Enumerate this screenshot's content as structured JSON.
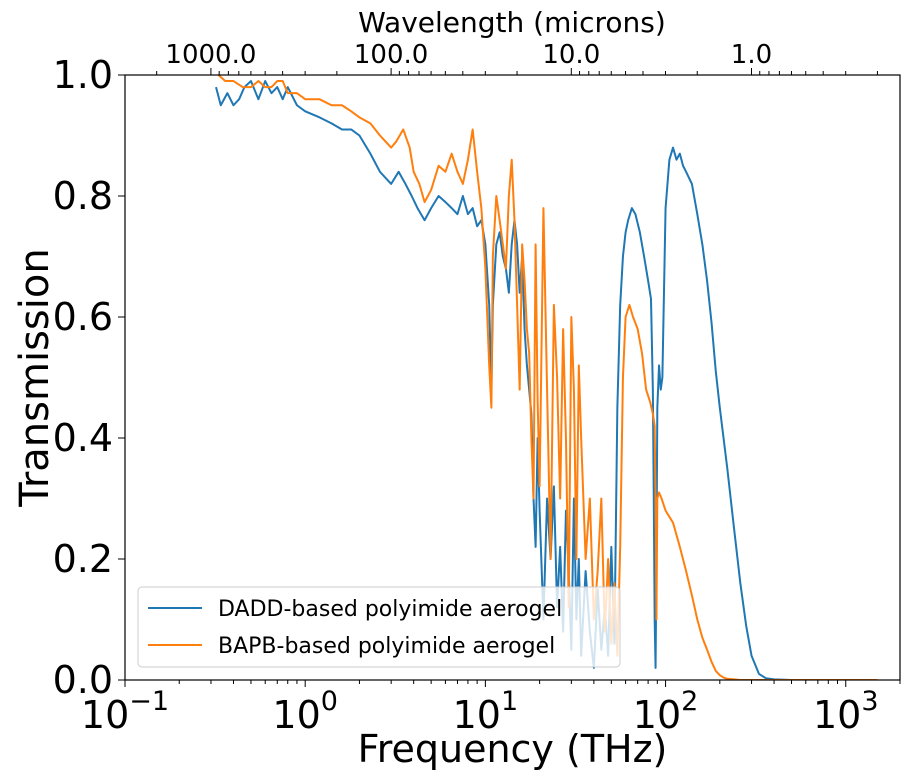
{
  "chart_data": {
    "type": "line",
    "xlabel": "Frequency (THz)",
    "ylabel": "Transmission",
    "top_xlabel": "Wavelength (microns)",
    "x_scale": "log",
    "xlim": [
      0.1,
      2000
    ],
    "ylim": [
      0,
      1.0
    ],
    "grid": false,
    "legend_position": "lower-left",
    "x_ticks": [
      {
        "value": 0.1,
        "base": "10",
        "exp": "−1"
      },
      {
        "value": 1,
        "base": "10",
        "exp": "0"
      },
      {
        "value": 10,
        "base": "10",
        "exp": "1"
      },
      {
        "value": 100,
        "base": "10",
        "exp": "2"
      },
      {
        "value": 1000,
        "base": "10",
        "exp": "3"
      }
    ],
    "y_ticks": [
      "0.0",
      "0.2",
      "0.4",
      "0.6",
      "0.8",
      "1.0"
    ],
    "top_ticks": [
      {
        "label": "1000.0",
        "wavelength_um": 1000
      },
      {
        "label": "100.0",
        "wavelength_um": 100
      },
      {
        "label": "10.0",
        "wavelength_um": 10
      },
      {
        "label": "1.0",
        "wavelength_um": 1
      }
    ],
    "series": [
      {
        "name": "DADD-based polyimide aerogel",
        "color": "#1f77b4",
        "x": [
          0.32,
          0.34,
          0.37,
          0.4,
          0.43,
          0.46,
          0.5,
          0.55,
          0.6,
          0.65,
          0.7,
          0.75,
          0.8,
          0.9,
          1.0,
          1.2,
          1.4,
          1.6,
          1.8,
          2.0,
          2.3,
          2.6,
          3.0,
          3.3,
          3.6,
          3.9,
          4.2,
          4.6,
          5.0,
          5.5,
          6.0,
          6.5,
          7.0,
          7.5,
          8.0,
          8.5,
          9.0,
          9.5,
          10.0,
          10.5,
          10.8,
          11.0,
          11.5,
          12.0,
          12.5,
          13.0,
          13.5,
          14.0,
          14.5,
          15.0,
          15.5,
          16.0,
          16.5,
          17.0,
          17.5,
          18.0,
          18.5,
          19.0,
          19.5,
          20.0,
          21.0,
          22.0,
          23.0,
          24.0,
          25.0,
          26.0,
          27.0,
          28.0,
          29.0,
          30.0,
          31.0,
          32.0,
          33.0,
          34.0,
          36.0,
          38.0,
          40.0,
          42.0,
          44.0,
          46.0,
          48.0,
          50.0,
          52.0,
          54.0,
          56.0,
          58.0,
          60.0,
          62.0,
          65.0,
          68.0,
          72.0,
          76.0,
          80.0,
          83.0,
          85.0,
          86.0,
          87.0,
          88.0,
          89.0,
          90.0,
          92.0,
          94.0,
          96.0,
          100.0,
          105.0,
          110.0,
          115.0,
          120.0,
          125.0,
          130.0,
          140.0,
          150.0,
          160.0,
          170.0,
          180.0,
          190.0,
          200.0,
          220.0,
          240.0,
          260.0,
          280.0,
          300.0,
          330.0,
          360.0,
          400.0,
          500.0,
          700.0,
          1000.0,
          1500.0
        ],
        "y": [
          0.98,
          0.95,
          0.97,
          0.95,
          0.96,
          0.98,
          0.99,
          0.96,
          0.99,
          0.97,
          0.98,
          0.96,
          0.98,
          0.95,
          0.94,
          0.93,
          0.92,
          0.91,
          0.91,
          0.9,
          0.87,
          0.84,
          0.82,
          0.84,
          0.82,
          0.8,
          0.78,
          0.76,
          0.78,
          0.8,
          0.79,
          0.78,
          0.77,
          0.8,
          0.77,
          0.78,
          0.75,
          0.76,
          0.72,
          0.62,
          0.48,
          0.62,
          0.72,
          0.74,
          0.7,
          0.68,
          0.64,
          0.72,
          0.76,
          0.72,
          0.64,
          0.7,
          0.58,
          0.52,
          0.48,
          0.44,
          0.3,
          0.22,
          0.4,
          0.28,
          0.1,
          0.3,
          0.2,
          0.32,
          0.12,
          0.22,
          0.08,
          0.28,
          0.18,
          0.05,
          0.3,
          0.1,
          0.2,
          0.04,
          0.18,
          0.08,
          0.02,
          0.15,
          0.05,
          0.12,
          0.04,
          0.22,
          0.06,
          0.45,
          0.62,
          0.7,
          0.74,
          0.76,
          0.78,
          0.77,
          0.74,
          0.7,
          0.66,
          0.63,
          0.48,
          0.3,
          0.1,
          0.02,
          0.2,
          0.45,
          0.52,
          0.48,
          0.5,
          0.78,
          0.86,
          0.88,
          0.86,
          0.87,
          0.85,
          0.84,
          0.82,
          0.77,
          0.72,
          0.66,
          0.59,
          0.51,
          0.45,
          0.35,
          0.25,
          0.16,
          0.09,
          0.04,
          0.01,
          0.003,
          0.001,
          0.0,
          0.0,
          0.0,
          0.0
        ]
      },
      {
        "name": "BAPB-based polyimide aerogel",
        "color": "#ff7f0e",
        "x": [
          0.33,
          0.36,
          0.4,
          0.45,
          0.5,
          0.55,
          0.6,
          0.65,
          0.7,
          0.75,
          0.8,
          0.9,
          1.0,
          1.2,
          1.4,
          1.6,
          1.8,
          2.0,
          2.3,
          2.6,
          3.0,
          3.2,
          3.5,
          3.8,
          4.0,
          4.3,
          4.6,
          5.0,
          5.5,
          6.0,
          6.5,
          7.0,
          7.5,
          8.0,
          8.5,
          9.0,
          9.5,
          10.0,
          10.5,
          10.8,
          11.0,
          11.5,
          12.0,
          12.5,
          13.0,
          13.5,
          14.0,
          14.5,
          15.0,
          15.5,
          16.0,
          16.5,
          17.0,
          17.5,
          18.0,
          18.5,
          19.0,
          19.5,
          20.0,
          21.0,
          22.0,
          23.0,
          24.0,
          25.0,
          26.0,
          27.0,
          28.0,
          29.0,
          30.0,
          31.0,
          32.0,
          33.0,
          34.0,
          36.0,
          38.0,
          40.0,
          42.0,
          44.0,
          46.0,
          48.0,
          50.0,
          52.0,
          54.0,
          56.0,
          58.0,
          60.0,
          63.0,
          66.0,
          70.0,
          74.0,
          78.0,
          82.0,
          85.0,
          87.0,
          88.0,
          89.0,
          90.0,
          92.0,
          95.0,
          100.0,
          110.0,
          120.0,
          130.0,
          140.0,
          150.0,
          160.0,
          170.0,
          180.0,
          190.0,
          200.0,
          210.0,
          220.0,
          240.0,
          260.0,
          300.0,
          400.0,
          600.0,
          1000.0,
          1500.0
        ],
        "y": [
          1.0,
          0.99,
          0.99,
          0.98,
          0.98,
          0.99,
          0.98,
          0.98,
          0.99,
          0.99,
          0.97,
          0.97,
          0.96,
          0.96,
          0.95,
          0.95,
          0.94,
          0.93,
          0.92,
          0.9,
          0.88,
          0.89,
          0.91,
          0.88,
          0.84,
          0.82,
          0.79,
          0.81,
          0.85,
          0.84,
          0.87,
          0.84,
          0.82,
          0.86,
          0.91,
          0.84,
          0.78,
          0.68,
          0.52,
          0.45,
          0.7,
          0.8,
          0.76,
          0.72,
          0.68,
          0.8,
          0.86,
          0.76,
          0.62,
          0.48,
          0.72,
          0.66,
          0.58,
          0.54,
          0.4,
          0.3,
          0.72,
          0.46,
          0.32,
          0.78,
          0.48,
          0.2,
          0.62,
          0.5,
          0.3,
          0.58,
          0.4,
          0.12,
          0.6,
          0.48,
          0.2,
          0.52,
          0.4,
          0.2,
          0.3,
          0.1,
          0.18,
          0.3,
          0.08,
          0.2,
          0.06,
          0.16,
          0.04,
          0.22,
          0.5,
          0.6,
          0.62,
          0.6,
          0.58,
          0.54,
          0.48,
          0.46,
          0.44,
          0.42,
          0.3,
          0.1,
          0.3,
          0.31,
          0.3,
          0.28,
          0.26,
          0.22,
          0.18,
          0.14,
          0.1,
          0.07,
          0.05,
          0.03,
          0.015,
          0.008,
          0.004,
          0.002,
          0.001,
          0.0,
          0.0,
          0.0,
          0.0,
          0.0,
          0.0
        ]
      }
    ]
  }
}
